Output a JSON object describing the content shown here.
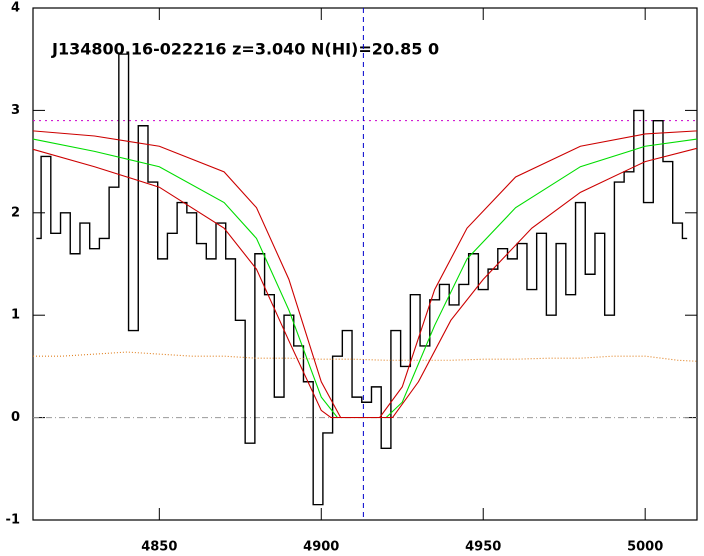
{
  "chart_data": {
    "type": "spectrum",
    "title": "J134800.16-022216 z=3.040 N(HI)=20.85 0",
    "xlim": [
      4811,
      5016
    ],
    "ylim": [
      -1,
      4
    ],
    "xticks": [
      4850,
      4900,
      4950,
      5000
    ],
    "yticks": [
      -1,
      0,
      1,
      2,
      3,
      4
    ],
    "series": [
      {
        "color": "#000000",
        "style": "step",
        "x": [
          4812,
          4815,
          4818,
          4821,
          4824,
          4827,
          4830,
          4833,
          4836,
          4839,
          4842,
          4845,
          4848,
          4851,
          4854,
          4857,
          4860,
          4863,
          4866,
          4869,
          4872,
          4875,
          4878,
          4881,
          4884,
          4887,
          4890,
          4893,
          4896,
          4899,
          4902,
          4905,
          4908,
          4911,
          4914,
          4917,
          4920,
          4923,
          4926,
          4929,
          4932,
          4935,
          4938,
          4941,
          4944,
          4947,
          4950,
          4953,
          4956,
          4959,
          4962,
          4965,
          4968,
          4971,
          4974,
          4977,
          4980,
          4983,
          4986,
          4989,
          4992,
          4995,
          4998,
          5001,
          5004,
          5007,
          5010,
          5013
        ],
        "values": [
          1.75,
          2.55,
          1.8,
          2.0,
          1.6,
          1.9,
          1.65,
          1.75,
          2.25,
          3.55,
          0.85,
          2.85,
          2.3,
          1.55,
          1.8,
          2.1,
          2.0,
          1.7,
          1.55,
          1.9,
          1.55,
          0.95,
          -0.25,
          1.6,
          1.2,
          0.2,
          1.0,
          0.7,
          0.35,
          -0.85,
          -0.15,
          0.6,
          0.85,
          0.2,
          0.15,
          0.3,
          -0.3,
          0.85,
          0.5,
          1.2,
          0.7,
          1.15,
          1.3,
          1.1,
          1.3,
          1.6,
          1.25,
          1.45,
          1.65,
          1.55,
          1.7,
          1.25,
          1.8,
          1.0,
          1.7,
          1.2,
          2.1,
          1.4,
          1.8,
          1.0,
          2.3,
          2.4,
          3.0,
          2.1,
          2.9,
          2.5,
          1.9,
          1.75
        ]
      },
      {
        "color": "#e08020",
        "style": "dotted",
        "x": [
          4811,
          4820,
          4830,
          4840,
          4850,
          4860,
          4870,
          4880,
          4890,
          4900,
          4910,
          4920,
          4930,
          4940,
          4950,
          4960,
          4970,
          4980,
          4990,
          5000,
          5010,
          5016
        ],
        "values": [
          0.6,
          0.6,
          0.62,
          0.64,
          0.62,
          0.6,
          0.6,
          0.58,
          0.58,
          0.57,
          0.57,
          0.56,
          0.56,
          0.56,
          0.57,
          0.57,
          0.58,
          0.58,
          0.6,
          0.6,
          0.56,
          0.55
        ]
      },
      {
        "color": "#00dd00",
        "style": "line",
        "x": [
          4811,
          4830,
          4850,
          4870,
          4880,
          4890,
          4900,
          4905,
          4920,
          4925,
          4935,
          4945,
          4960,
          4980,
          5000,
          5016
        ],
        "values": [
          2.72,
          2.6,
          2.45,
          2.1,
          1.75,
          1.05,
          0.2,
          0,
          0,
          0.15,
          0.9,
          1.55,
          2.05,
          2.45,
          2.65,
          2.72
        ]
      },
      {
        "color": "#cc0000",
        "style": "line",
        "x": [
          4811,
          4830,
          4850,
          4870,
          4880,
          4890,
          4900,
          4903,
          4922,
          4930,
          4940,
          4950,
          4965,
          4980,
          5000,
          5016
        ],
        "values": [
          2.62,
          2.45,
          2.25,
          1.85,
          1.45,
          0.75,
          0.07,
          0,
          0,
          0.35,
          0.95,
          1.35,
          1.85,
          2.2,
          2.5,
          2.63
        ]
      },
      {
        "color": "#cc0000",
        "style": "line",
        "x": [
          4811,
          4830,
          4850,
          4870,
          4880,
          4890,
          4900,
          4906,
          4918,
          4925,
          4935,
          4945,
          4960,
          4980,
          5000,
          5016
        ],
        "values": [
          2.8,
          2.75,
          2.65,
          2.4,
          2.05,
          1.35,
          0.35,
          0,
          0,
          0.3,
          1.25,
          1.85,
          2.35,
          2.65,
          2.77,
          2.8
        ]
      }
    ],
    "hlines": [
      {
        "value": 2.9,
        "color": "#cc00cc",
        "dash": "2,4"
      },
      {
        "value": 0,
        "color": "#999999",
        "dash": "6,3,1,3"
      }
    ],
    "vlines": [
      {
        "value": 4913,
        "color": "#0000cc",
        "dash": "5,4"
      }
    ]
  }
}
